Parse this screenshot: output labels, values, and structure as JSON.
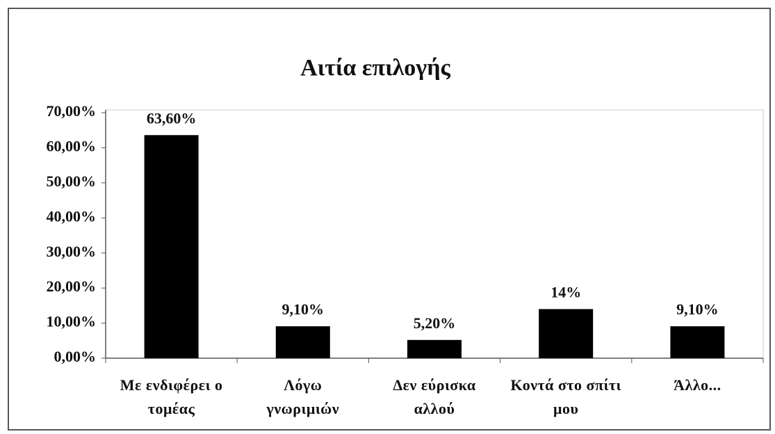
{
  "chart_data": {
    "type": "bar",
    "title": "Αιτία επιλογής",
    "categories": [
      "Με ενδιφέρει ο τομέας",
      "Λόγω γνωριμιών",
      "Δεν εύρισκα αλλού",
      "Κοντά στο σπίτι μου",
      "Άλλο..."
    ],
    "values": [
      63.6,
      9.1,
      5.2,
      14,
      9.1
    ],
    "value_labels": [
      "63,60%",
      "9,10%",
      "5,20%",
      "14%",
      "9,10%"
    ],
    "color": "#000000",
    "ylim": [
      0,
      70
    ],
    "yticks": [
      {
        "value": 0,
        "label": "0,00%"
      },
      {
        "value": 10,
        "label": "10,00%"
      },
      {
        "value": 20,
        "label": "20,00%"
      },
      {
        "value": 30,
        "label": "30,00%"
      },
      {
        "value": 40,
        "label": "40,00%"
      },
      {
        "value": 50,
        "label": "50,00%"
      },
      {
        "value": 60,
        "label": "60,00%"
      },
      {
        "value": 70,
        "label": "70,00%"
      }
    ],
    "grid": false
  }
}
